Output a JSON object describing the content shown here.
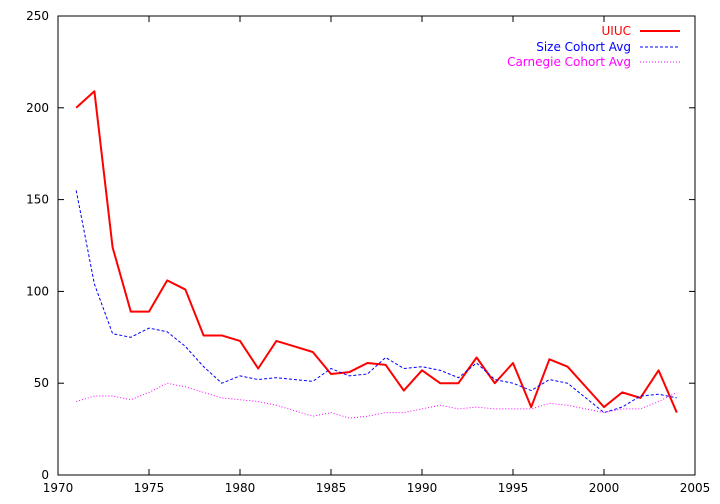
{
  "chart_data": {
    "type": "line",
    "title": "",
    "xlabel": "",
    "ylabel": "",
    "xlim": [
      1970,
      2005
    ],
    "ylim": [
      0,
      250
    ],
    "xticks": [
      1970,
      1975,
      1980,
      1985,
      1990,
      1995,
      2000,
      2005
    ],
    "yticks": [
      0,
      50,
      100,
      150,
      200,
      250
    ],
    "grid": false,
    "legend_position": "top-right",
    "x": [
      1971,
      1972,
      1973,
      1974,
      1975,
      1976,
      1977,
      1978,
      1979,
      1980,
      1981,
      1982,
      1983,
      1984,
      1985,
      1986,
      1987,
      1988,
      1989,
      1990,
      1991,
      1992,
      1993,
      1994,
      1995,
      1996,
      1997,
      1998,
      1999,
      2000,
      2001,
      2002,
      2003,
      2004
    ],
    "series": [
      {
        "name": "UIUC",
        "color": "#ff0000",
        "style": "solid",
        "values": [
          200,
          209,
          124,
          89,
          89,
          106,
          101,
          76,
          76,
          73,
          58,
          73,
          70,
          67,
          55,
          56,
          61,
          60,
          46,
          57,
          50,
          50,
          64,
          50,
          61,
          37,
          63,
          59,
          48,
          37,
          45,
          42,
          57,
          34
        ]
      },
      {
        "name": "Size Cohort Avg",
        "color": "#0000ff",
        "style": "dashed",
        "values": [
          155,
          104,
          77,
          75,
          80,
          78,
          70,
          59,
          50,
          54,
          52,
          53,
          52,
          51,
          58,
          54,
          55,
          64,
          58,
          59,
          57,
          53,
          61,
          52,
          50,
          46,
          52,
          50,
          42,
          34,
          37,
          43,
          44,
          42
        ]
      },
      {
        "name": "Carnegie Cohort Avg",
        "color": "#ff00ff",
        "style": "dotted",
        "values": [
          40,
          43,
          43,
          41,
          45,
          50,
          48,
          45,
          42,
          41,
          40,
          38,
          35,
          32,
          34,
          31,
          32,
          34,
          34,
          36,
          38,
          36,
          37,
          36,
          36,
          36,
          39,
          38,
          36,
          34,
          36,
          36,
          40,
          45
        ]
      }
    ]
  }
}
